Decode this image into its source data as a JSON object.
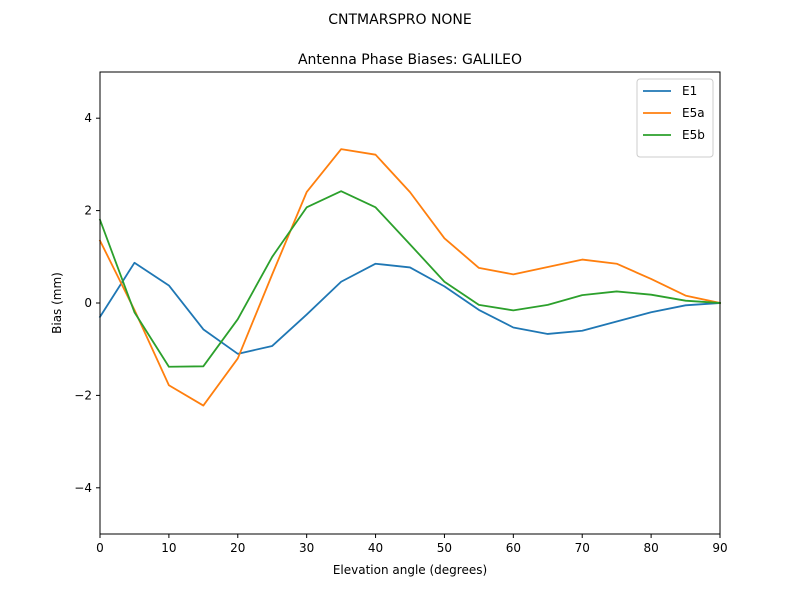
{
  "suptitle": "CNTMARSPRO      NONE",
  "chart_data": {
    "type": "line",
    "title": "Antenna Phase Biases: GALILEO",
    "xlabel": "Elevation angle (degrees)",
    "ylabel": "Bias (mm)",
    "xlim": [
      0,
      90
    ],
    "ylim": [
      -5,
      5
    ],
    "xticks": [
      0,
      10,
      20,
      30,
      40,
      50,
      60,
      70,
      80,
      90
    ],
    "yticks": [
      -4,
      -2,
      0,
      2,
      4
    ],
    "ytick_labels": [
      "−4",
      "−2",
      "0",
      "2",
      "4"
    ],
    "grid": false,
    "legend_position": "top-right",
    "x": [
      0,
      5,
      10,
      15,
      20,
      25,
      30,
      35,
      40,
      45,
      50,
      55,
      60,
      65,
      70,
      75,
      80,
      85,
      90
    ],
    "series": [
      {
        "name": "E1",
        "color": "#1f77b4",
        "values": [
          -0.3,
          0.87,
          0.38,
          -0.57,
          -1.1,
          -0.93,
          -0.25,
          0.46,
          0.85,
          0.77,
          0.36,
          -0.15,
          -0.53,
          -0.67,
          -0.6,
          -0.4,
          -0.2,
          -0.05,
          0.0
        ]
      },
      {
        "name": "E5a",
        "color": "#ff7f0e",
        "values": [
          1.35,
          -0.15,
          -1.78,
          -2.22,
          -1.2,
          0.62,
          2.4,
          3.33,
          3.21,
          2.4,
          1.4,
          0.76,
          0.62,
          0.78,
          0.94,
          0.85,
          0.52,
          0.16,
          0.0
        ]
      },
      {
        "name": "E5b",
        "color": "#2ca02c",
        "values": [
          1.8,
          -0.2,
          -1.38,
          -1.37,
          -0.35,
          1.0,
          2.07,
          2.42,
          2.07,
          1.27,
          0.46,
          -0.04,
          -0.16,
          -0.04,
          0.17,
          0.25,
          0.18,
          0.05,
          0.0
        ]
      }
    ]
  }
}
